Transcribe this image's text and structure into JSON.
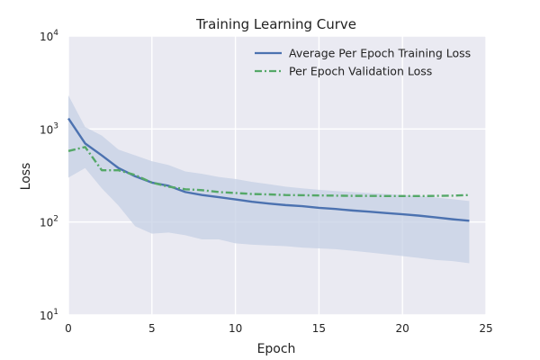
{
  "chart_data": {
    "type": "line",
    "title": "Training Learning Curve",
    "xlabel": "Epoch",
    "ylabel": "Loss",
    "xlim": [
      0,
      25
    ],
    "ylim": [
      10,
      10000
    ],
    "yscale": "log",
    "grid": true,
    "legend_position": "top-right",
    "x_ticks": [
      0,
      5,
      10,
      15,
      20,
      25
    ],
    "y_ticks": [
      {
        "value": 10,
        "base": "10",
        "exp": "1"
      },
      {
        "value": 100,
        "base": "10",
        "exp": "2"
      },
      {
        "value": 1000,
        "base": "10",
        "exp": "3"
      },
      {
        "value": 10000,
        "base": "10",
        "exp": "4"
      }
    ],
    "x": [
      0,
      1,
      2,
      3,
      4,
      5,
      6,
      7,
      8,
      9,
      10,
      11,
      12,
      13,
      14,
      15,
      16,
      17,
      18,
      19,
      20,
      21,
      22,
      23,
      24
    ],
    "series": [
      {
        "name": "Average Per Epoch Training Loss",
        "color": "#4c72b0",
        "style": "solid",
        "values": [
          1300,
          700,
          520,
          380,
          310,
          265,
          245,
          210,
          195,
          185,
          175,
          165,
          158,
          152,
          148,
          142,
          138,
          133,
          129,
          125,
          121,
          117,
          112,
          107,
          103
        ],
        "band_upper": [
          2300,
          1050,
          850,
          600,
          520,
          450,
          410,
          350,
          330,
          305,
          290,
          270,
          255,
          240,
          230,
          222,
          215,
          210,
          205,
          200,
          195,
          190,
          183,
          176,
          168
        ],
        "band_lower": [
          300,
          380,
          230,
          150,
          90,
          75,
          77,
          72,
          65,
          65,
          59,
          57,
          56,
          55,
          53,
          52,
          51,
          49,
          47,
          45,
          43,
          41,
          39,
          38,
          36
        ],
        "band_color": "#c6d0e4"
      },
      {
        "name": "Per Epoch Validation Loss",
        "color": "#55a868",
        "style": "dashdot",
        "values": [
          580,
          640,
          360,
          360,
          320,
          265,
          240,
          225,
          220,
          210,
          205,
          200,
          198,
          195,
          194,
          193,
          192,
          191,
          191,
          190,
          190,
          190,
          191,
          192,
          195
        ]
      }
    ]
  }
}
